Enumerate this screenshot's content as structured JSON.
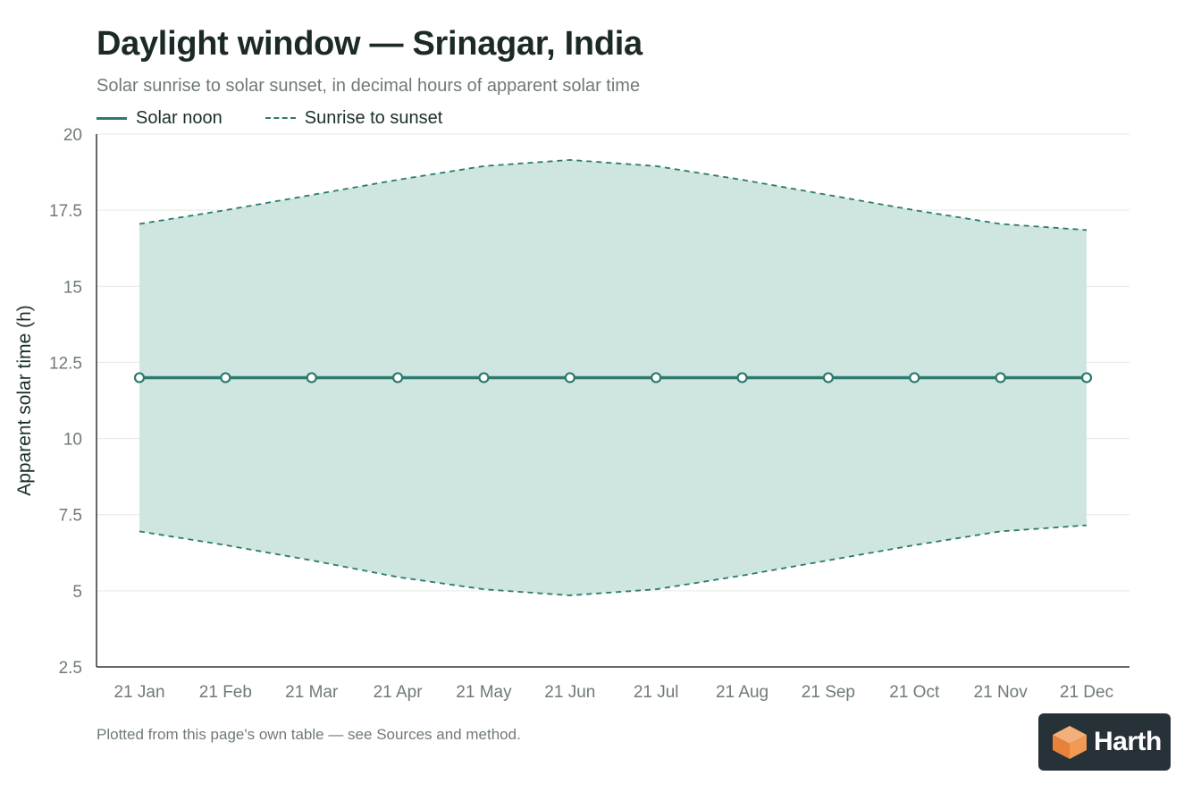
{
  "header": {
    "title": "Daylight window — Srinagar, India",
    "subtitle": "Solar sunrise to solar sunset, in decimal hours of apparent solar time"
  },
  "legend": {
    "solar_noon": "Solar noon",
    "sunrise_sunset": "Sunrise to sunset"
  },
  "footnote": "Plotted from this page's own table — see Sources and method.",
  "brand": {
    "name": "Harth",
    "icon": "cube-logo-icon"
  },
  "colors": {
    "line": "#2b7a6c",
    "band_fill": "#cfe5e0",
    "axis": "#333333",
    "grid": "#e6e9e8",
    "tick_text": "#6f7a77"
  },
  "chart_data": {
    "type": "line",
    "title": "Daylight window — Srinagar, India",
    "subtitle": "Solar sunrise to solar sunset, in decimal hours of apparent solar time",
    "xlabel": "",
    "ylabel": "Apparent solar time (h)",
    "categories": [
      "21 Jan",
      "21 Feb",
      "21 Mar",
      "21 Apr",
      "21 May",
      "21 Jun",
      "21 Jul",
      "21 Aug",
      "21 Sep",
      "21 Oct",
      "21 Nov",
      "21 Dec"
    ],
    "ylim": [
      2.5,
      20
    ],
    "yticks": [
      2.5,
      5,
      7.5,
      10,
      12.5,
      15,
      17.5,
      20
    ],
    "ytick_labels": [
      "2.5",
      "5",
      "7.5",
      "10",
      "12.5",
      "15",
      "17.5",
      "20"
    ],
    "grid": true,
    "legend_position": "top-left",
    "series": [
      {
        "name": "Solar noon",
        "style": "solid-with-markers",
        "values": [
          12,
          12,
          12,
          12,
          12,
          12,
          12,
          12,
          12,
          12,
          12,
          12
        ]
      },
      {
        "name": "Sunrise to sunset",
        "style": "dashed-band",
        "low": [
          6.95,
          6.5,
          6.0,
          5.45,
          5.05,
          4.85,
          5.05,
          5.5,
          6.0,
          6.5,
          6.95,
          7.15
        ],
        "high": [
          17.05,
          17.5,
          18.0,
          18.5,
          18.95,
          19.15,
          18.95,
          18.5,
          18.0,
          17.5,
          17.05,
          16.85
        ]
      }
    ]
  }
}
